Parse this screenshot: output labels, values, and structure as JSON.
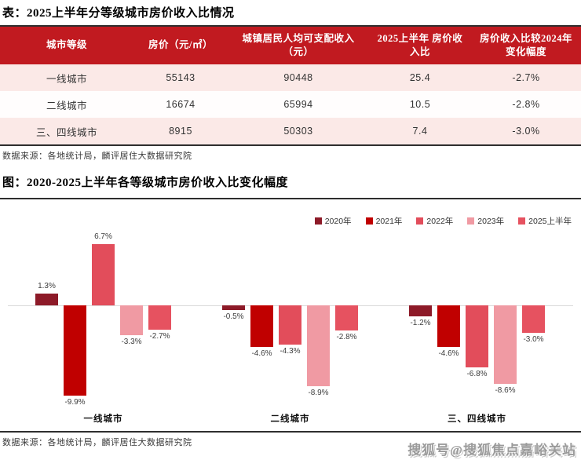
{
  "page": {
    "table_section": {
      "title": "表：2025上半年分等级城市房价收入比情况",
      "table": {
        "headers": [
          "城市等级",
          "房价（元/㎡）",
          "城镇居民人均可支配收入（元）",
          "2025上半年 房价收入比",
          "房价收入比较2024年 变化幅度"
        ],
        "rows": [
          [
            "一线城市",
            "55143",
            "90448",
            "25.4",
            "-2.7%"
          ],
          [
            "二线城市",
            "16674",
            "65994",
            "10.5",
            "-2.8%"
          ],
          [
            "三、四线城市",
            "8915",
            "50303",
            "7.4",
            "-3.0%"
          ]
        ]
      },
      "source": "数据来源：各地统计局，麟评居住大数据研究院"
    },
    "chart_section": {
      "title": "图：2020-2025上半年各等级城市房价收入比变化幅度",
      "source": "数据来源：各地统计局，麟评居住大数据研究院"
    },
    "watermark": "搜狐号@搜狐焦点嘉峪关站"
  },
  "chart_data": {
    "type": "bar",
    "title": "2020-2025上半年各等级城市房价收入比变化幅度",
    "categories": [
      "一线城市",
      "二线城市",
      "三、四线城市"
    ],
    "series": [
      {
        "name": "2020年",
        "color": "#8d1a28",
        "values": [
          1.3,
          -0.5,
          -1.2
        ]
      },
      {
        "name": "2021年",
        "color": "#c00000",
        "values": [
          -9.9,
          -4.6,
          -4.6
        ]
      },
      {
        "name": "2022年",
        "color": "#e24d5b",
        "values": [
          6.7,
          -4.3,
          -6.8
        ]
      },
      {
        "name": "2023年",
        "color": "#f09aa3",
        "values": [
          -3.3,
          -8.9,
          -8.6
        ]
      },
      {
        "name": "2025上半年",
        "color": "#e65260",
        "values": [
          -2.7,
          -2.8,
          -3.0
        ]
      }
    ],
    "unit": "%",
    "ylim": [
      -11,
      8
    ],
    "grid": false,
    "legend_position": "top-right",
    "value_labels": true,
    "accent_colors": {
      "table_header": "#c11a20",
      "row_pink": "#fbe9e7"
    }
  }
}
